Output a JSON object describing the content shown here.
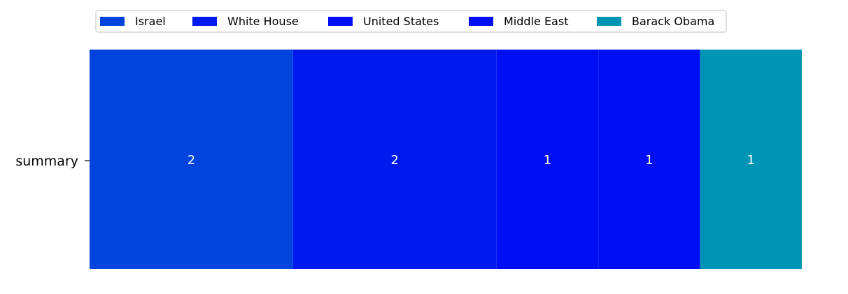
{
  "chart_data": {
    "type": "bar",
    "orientation": "horizontal",
    "stacked": true,
    "categories": [
      "summary"
    ],
    "series": [
      {
        "name": "Israel",
        "values": [
          2
        ],
        "color": "#0044dd"
      },
      {
        "name": "White House",
        "values": [
          2
        ],
        "color": "#0019ee"
      },
      {
        "name": "United States",
        "values": [
          1
        ],
        "color": "#000ef5"
      },
      {
        "name": "Middle East",
        "values": [
          1
        ],
        "color": "#000ef5"
      },
      {
        "name": "Barack Obama",
        "values": [
          1
        ],
        "color": "#0095b5"
      }
    ],
    "data_labels": [
      "2",
      "2",
      "1",
      "1",
      "1"
    ],
    "title": "",
    "xlabel": "",
    "ylabel": "",
    "xlim": [
      0,
      7
    ],
    "grid": false,
    "legend_position": "top"
  }
}
